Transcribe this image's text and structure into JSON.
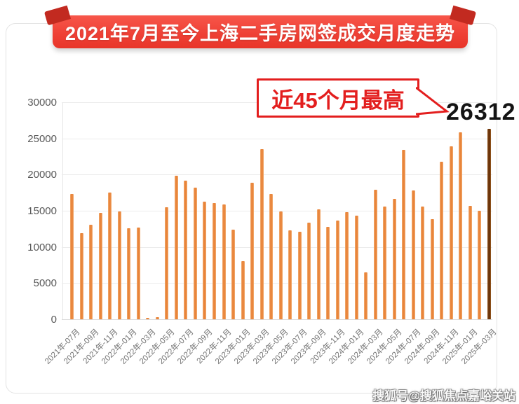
{
  "banner": {
    "title": "2021年7月至今上海二手房网签成交月度走势"
  },
  "annotation": {
    "label": "近45个月最高",
    "value": "26312"
  },
  "watermark": "搜狐号@搜狐焦点嘉峪关站",
  "colors": {
    "bar": "#e8843a",
    "bar_highlight": "#652f07",
    "banner_red": "#ef4136",
    "banner_fold": "#c22a20",
    "annotation_red": "#e31e1e",
    "grid": "#ececec",
    "axis_text": "#595959"
  },
  "chart_data": {
    "type": "bar",
    "title": "2021年7月至今上海二手房网签成交月度走势",
    "ylim": [
      0,
      30000
    ],
    "y_ticks": [
      0,
      5000,
      10000,
      15000,
      20000,
      25000,
      30000
    ],
    "grid": true,
    "x_tick_labels": [
      "2021年-07月",
      "2021年-09月",
      "2021年-11月",
      "2022年-01月",
      "2022年-03月",
      "2022年-05月",
      "2022年-07月",
      "2022年-09月",
      "2022年-11月",
      "2023年-01月",
      "2023年-03月",
      "2023年-05月",
      "2023年-07月",
      "2023年-09月",
      "2023年-11月",
      "2024年-01月",
      "2024年-03月",
      "2024年-05月",
      "2024年-07月",
      "2024年-09月",
      "2024年-11月",
      "2025年-01月",
      "2025年-03月"
    ],
    "values": [
      17300,
      11900,
      13100,
      14700,
      17500,
      14900,
      12600,
      12700,
      150,
      300,
      15500,
      19800,
      19200,
      18200,
      16300,
      16100,
      15900,
      12400,
      8000,
      18900,
      23500,
      17300,
      14900,
      12300,
      12100,
      13400,
      15200,
      12800,
      13600,
      14800,
      14300,
      6500,
      17900,
      15600,
      16600,
      23400,
      17800,
      15600,
      13800,
      21800,
      23900,
      25800,
      15700,
      15000,
      26312
    ],
    "highlight_last_value": 26312,
    "annotation_text": "近45个月最高",
    "legend": null
  }
}
